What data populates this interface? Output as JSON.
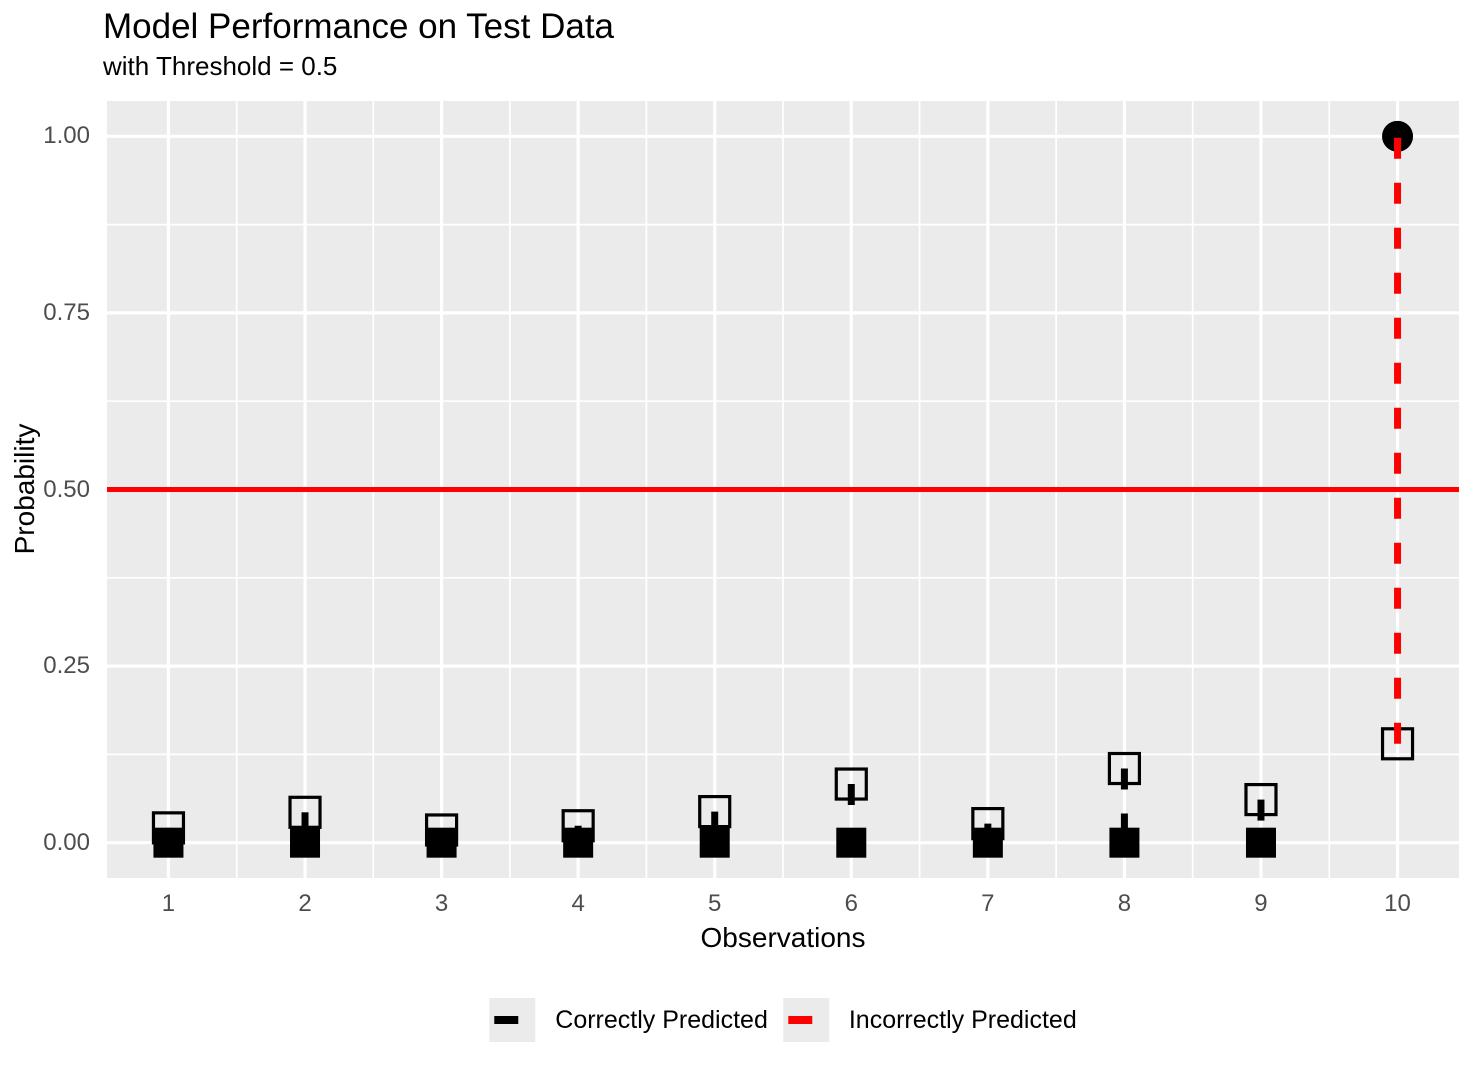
{
  "chart_data": {
    "type": "scatter",
    "title": "Model Performance on Test Data",
    "subtitle": "with Threshold = 0.5",
    "xlabel": "Observations",
    "ylabel": "Probability",
    "xlim": [
      0.55,
      10.45
    ],
    "ylim": [
      -0.05,
      1.05
    ],
    "grid": true,
    "x_ticks": [
      {
        "value": 1,
        "label": "1"
      },
      {
        "value": 2,
        "label": "2"
      },
      {
        "value": 3,
        "label": "3"
      },
      {
        "value": 4,
        "label": "4"
      },
      {
        "value": 5,
        "label": "5"
      },
      {
        "value": 6,
        "label": "6"
      },
      {
        "value": 7,
        "label": "7"
      },
      {
        "value": 8,
        "label": "8"
      },
      {
        "value": 9,
        "label": "9"
      },
      {
        "value": 10,
        "label": "10"
      }
    ],
    "y_ticks": [
      {
        "value": 0.0,
        "label": "0.00"
      },
      {
        "value": 0.25,
        "label": "0.25"
      },
      {
        "value": 0.5,
        "label": "0.50"
      },
      {
        "value": 0.75,
        "label": "0.75"
      },
      {
        "value": 1.0,
        "label": "1.00"
      }
    ],
    "y_minor_gridlines": [
      0.125,
      0.375,
      0.625,
      0.875
    ],
    "threshold": {
      "value": 0.5,
      "color": "#FF0000",
      "label": "Threshold = 0.5"
    },
    "observations": [
      {
        "x": 1,
        "actual": 0,
        "predicted_prob": 0.021,
        "correct": true,
        "actual_marker": "square"
      },
      {
        "x": 2,
        "actual": 0,
        "predicted_prob": 0.043,
        "correct": true,
        "actual_marker": "square"
      },
      {
        "x": 3,
        "actual": 0,
        "predicted_prob": 0.018,
        "correct": true,
        "actual_marker": "square"
      },
      {
        "x": 4,
        "actual": 0,
        "predicted_prob": 0.024,
        "correct": true,
        "actual_marker": "square"
      },
      {
        "x": 5,
        "actual": 0,
        "predicted_prob": 0.044,
        "correct": true,
        "actual_marker": "square"
      },
      {
        "x": 6,
        "actual": 0,
        "predicted_prob": 0.083,
        "correct": true,
        "actual_marker": "square"
      },
      {
        "x": 7,
        "actual": 0,
        "predicted_prob": 0.027,
        "correct": true,
        "actual_marker": "square"
      },
      {
        "x": 8,
        "actual": 0,
        "predicted_prob": 0.105,
        "correct": true,
        "actual_marker": "square"
      },
      {
        "x": 9,
        "actual": 0,
        "predicted_prob": 0.061,
        "correct": true,
        "actual_marker": "square"
      },
      {
        "x": 10,
        "actual": 1,
        "predicted_prob": 0.14,
        "correct": false,
        "actual_marker": "circle"
      }
    ],
    "legend": {
      "position": "bottom",
      "items": [
        {
          "label": "Correctly Predicted",
          "color": "#000000"
        },
        {
          "label": "Incorrectly Predicted",
          "color": "#FF0000"
        }
      ]
    },
    "colors": {
      "panel_background": "#EBEBEB",
      "grid": "#FFFFFF",
      "tick_label": "#4D4D4D",
      "text": "#000000",
      "correct": "#000000",
      "incorrect": "#FF0000"
    }
  }
}
